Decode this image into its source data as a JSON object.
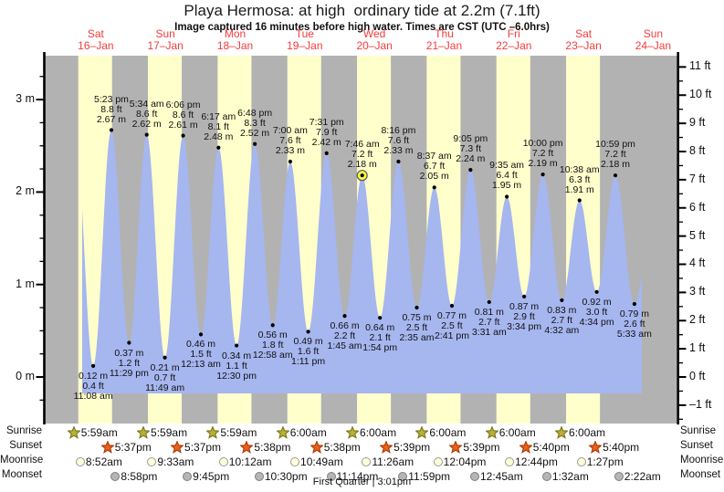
{
  "title": "Playa Hermosa: at high  ordinary tide at 2.2m (7.1ft)",
  "subtitle": "Image captured 16 minutes before high water. Times are CST (UTC –6.0hrs)",
  "footer": "First Quarter | 3:01pm",
  "colors": {
    "night_band": "#b2b2b2",
    "day_band": "#ffffcc",
    "tide_fill": "#a6b6ef",
    "day_label_red": "#f53b3b",
    "axis_black": "#000000",
    "marker_yellow": "#fdff42",
    "sunrise_star_fill": "#b9b233",
    "sunrise_star_stroke": "#79741a",
    "sunset_star_fill": "#e8611c",
    "sunset_star_stroke": "#a93a06",
    "moonrise_fill": "#ffffd9",
    "moonrise_stroke": "#999999",
    "moonset_fill": "#b5b5b5",
    "moonset_stroke": "#7f7f7f"
  },
  "chart_data": {
    "type": "area",
    "title": "Playa Hermosa: at high ordinary tide at 2.2m (7.1ft)",
    "x_axis_days": [
      {
        "weekday": "Sat",
        "date": "16–Jan"
      },
      {
        "weekday": "Sun",
        "date": "17–Jan"
      },
      {
        "weekday": "Mon",
        "date": "18–Jan"
      },
      {
        "weekday": "Tue",
        "date": "19–Jan"
      },
      {
        "weekday": "Wed",
        "date": "20–Jan"
      },
      {
        "weekday": "Thu",
        "date": "21–Jan"
      },
      {
        "weekday": "Fri",
        "date": "22–Jan"
      },
      {
        "weekday": "Sat",
        "date": "23–Jan"
      },
      {
        "weekday": "Sun",
        "date": "24–Jan"
      }
    ],
    "y_axis_left": {
      "unit": "m",
      "majors": [
        0,
        1,
        2,
        3
      ],
      "minor_step": 0.25,
      "range": [
        -0.5,
        3.5
      ]
    },
    "y_axis_right": {
      "unit": "ft",
      "majors": [
        -1,
        0,
        1,
        2,
        3,
        4,
        5,
        6,
        7,
        8,
        9,
        10,
        11
      ],
      "minor_step": 0.5
    },
    "high_tides": [
      {
        "day": 0,
        "time": "5:23 pm",
        "height_ft": 8.8,
        "height_m": 2.67
      },
      {
        "day": 1,
        "time": "5:34 am",
        "height_ft": 8.6,
        "height_m": 2.62
      },
      {
        "day": 1,
        "time": "6:06 pm",
        "height_ft": 8.6,
        "height_m": 2.61
      },
      {
        "day": 2,
        "time": "6:17 am",
        "height_ft": 8.1,
        "height_m": 2.48
      },
      {
        "day": 2,
        "time": "6:48 pm",
        "height_ft": 8.3,
        "height_m": 2.52
      },
      {
        "day": 3,
        "time": "7:00 am",
        "height_ft": 7.6,
        "height_m": 2.33
      },
      {
        "day": 3,
        "time": "7:31 pm",
        "height_ft": 7.9,
        "height_m": 2.42
      },
      {
        "day": 4,
        "time": "7:46 am",
        "height_ft": 7.2,
        "height_m": 2.18
      },
      {
        "day": 4,
        "time": "8:16 pm",
        "height_ft": 7.6,
        "height_m": 2.33
      },
      {
        "day": 5,
        "time": "8:37 am",
        "height_ft": 6.7,
        "height_m": 2.05
      },
      {
        "day": 5,
        "time": "9:05 pm",
        "height_ft": 7.3,
        "height_m": 2.24
      },
      {
        "day": 6,
        "time": "9:35 am",
        "height_ft": 6.4,
        "height_m": 1.95
      },
      {
        "day": 6,
        "time": "10:00 pm",
        "height_ft": 7.2,
        "height_m": 2.19
      },
      {
        "day": 7,
        "time": "10:38 am",
        "height_ft": 6.3,
        "height_m": 1.91
      },
      {
        "day": 7,
        "time": "10:59 pm",
        "height_ft": 7.2,
        "height_m": 2.18
      }
    ],
    "low_tides": [
      {
        "day": 0,
        "time": "11:08 am",
        "height_ft": 0.4,
        "height_m": 0.12
      },
      {
        "day": 0,
        "time": "11:29 pm",
        "height_ft": 1.2,
        "height_m": 0.37
      },
      {
        "day": 1,
        "time": "11:49 am",
        "height_ft": 0.7,
        "height_m": 0.21
      },
      {
        "day": 2,
        "time": "12:13 am",
        "height_ft": 1.5,
        "height_m": 0.46
      },
      {
        "day": 2,
        "time": "12:30 pm",
        "height_ft": 1.1,
        "height_m": 0.34
      },
      {
        "day": 3,
        "time": "12:58 am",
        "height_ft": 1.8,
        "height_m": 0.56
      },
      {
        "day": 3,
        "time": "1:11 pm",
        "height_ft": 1.6,
        "height_m": 0.49
      },
      {
        "day": 4,
        "time": "1:45 am",
        "height_ft": 2.2,
        "height_m": 0.66
      },
      {
        "day": 4,
        "time": "1:54 pm",
        "height_ft": 2.1,
        "height_m": 0.64
      },
      {
        "day": 5,
        "time": "2:35 am",
        "height_ft": 2.5,
        "height_m": 0.75
      },
      {
        "day": 5,
        "time": "2:41 pm",
        "height_ft": 2.5,
        "height_m": 0.77
      },
      {
        "day": 6,
        "time": "3:31 am",
        "height_ft": 2.7,
        "height_m": 0.81
      },
      {
        "day": 6,
        "time": "3:34 pm",
        "height_ft": 2.9,
        "height_m": 0.87
      },
      {
        "day": 7,
        "time": "4:32 am",
        "height_ft": 2.7,
        "height_m": 0.83
      },
      {
        "day": 7,
        "time": "4:34 pm",
        "height_ft": 3.0,
        "height_m": 0.92
      },
      {
        "day": 8,
        "time": "5:33 am",
        "height_ft": 2.6,
        "height_m": 0.79
      }
    ],
    "current_high_index": 7
  },
  "astro": {
    "rows": [
      {
        "id": "sunrise",
        "label": "Sunrise",
        "icon": "sunrise-star-icon",
        "entries": [
          {
            "day": 0,
            "time": "5:59am"
          },
          {
            "day": 1,
            "time": "5:59am"
          },
          {
            "day": 2,
            "time": "5:59am"
          },
          {
            "day": 3,
            "time": "6:00am"
          },
          {
            "day": 4,
            "time": "6:00am"
          },
          {
            "day": 5,
            "time": "6:00am"
          },
          {
            "day": 6,
            "time": "6:00am"
          },
          {
            "day": 7,
            "time": "6:00am"
          }
        ]
      },
      {
        "id": "sunset",
        "label": "Sunset",
        "icon": "sunset-star-icon",
        "entries": [
          {
            "day": 0,
            "time": "5:37pm"
          },
          {
            "day": 1,
            "time": "5:37pm"
          },
          {
            "day": 2,
            "time": "5:38pm"
          },
          {
            "day": 3,
            "time": "5:38pm"
          },
          {
            "day": 4,
            "time": "5:39pm"
          },
          {
            "day": 5,
            "time": "5:39pm"
          },
          {
            "day": 6,
            "time": "5:40pm"
          },
          {
            "day": 7,
            "time": "5:40pm"
          }
        ]
      },
      {
        "id": "moonrise",
        "label": "Moonrise",
        "icon": "moonrise-icon",
        "entries": [
          {
            "day": 0,
            "time": "8:52am"
          },
          {
            "day": 1,
            "time": "9:33am"
          },
          {
            "day": 2,
            "time": "10:12am"
          },
          {
            "day": 3,
            "time": "10:49am"
          },
          {
            "day": 4,
            "time": "11:26am"
          },
          {
            "day": 5,
            "time": "12:04pm"
          },
          {
            "day": 6,
            "time": "12:44pm"
          },
          {
            "day": 7,
            "time": "1:27pm"
          }
        ]
      },
      {
        "id": "moonset",
        "label": "Moonset",
        "icon": "moonset-icon",
        "entries": [
          {
            "day": 0,
            "time": "8:58pm"
          },
          {
            "day": 1,
            "time": "9:45pm"
          },
          {
            "day": 2,
            "time": "10:30pm"
          },
          {
            "day": 3,
            "time": "11:14pm"
          },
          {
            "day": 4,
            "time": "11:59pm"
          },
          {
            "day": 6,
            "time": "12:45am"
          },
          {
            "day": 7,
            "time": "1:32am"
          },
          {
            "day": 8,
            "time": "2:22am"
          }
        ]
      }
    ]
  }
}
